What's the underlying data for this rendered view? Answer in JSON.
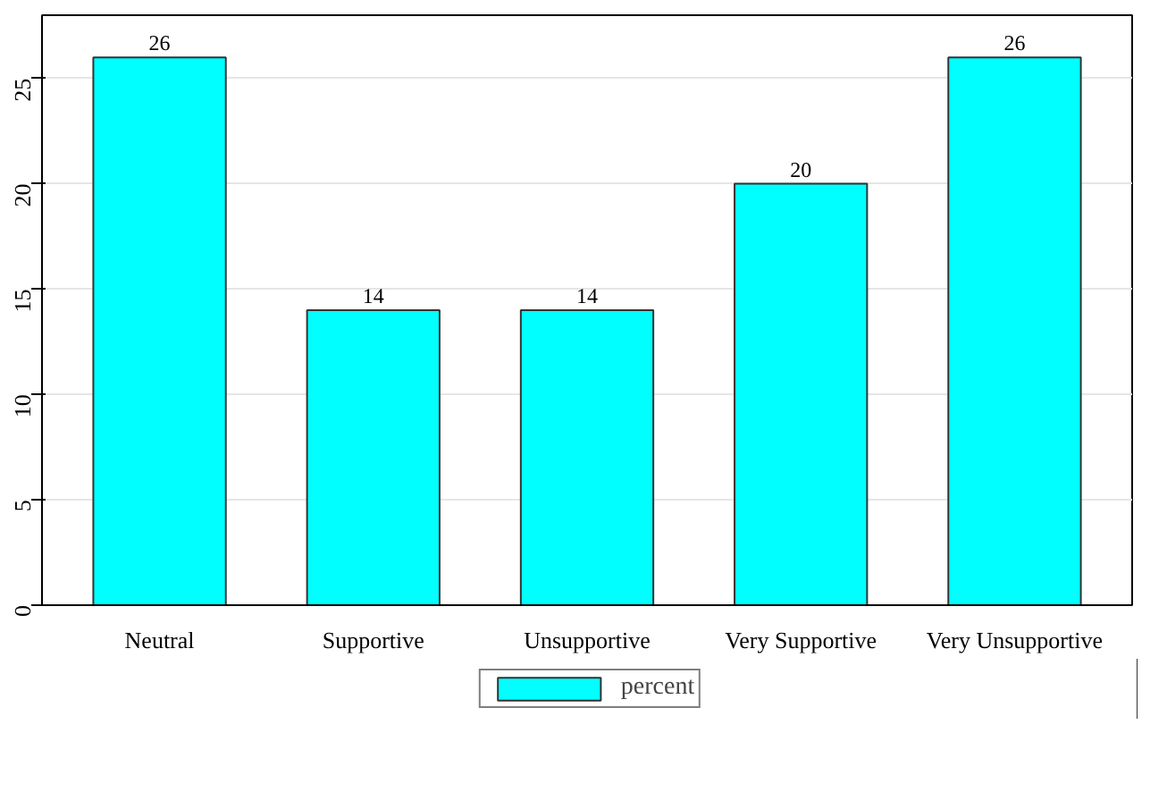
{
  "chart_data": {
    "type": "bar",
    "categories": [
      "Neutral",
      "Supportive",
      "Unsupportive",
      "Very Supportive",
      "Very Unsupportive"
    ],
    "series": [
      {
        "name": "percent",
        "color": "#00ffff",
        "values": [
          26,
          14,
          14,
          20,
          26
        ]
      }
    ],
    "ylim": [
      0,
      28
    ],
    "yticks": [
      0,
      5,
      10,
      15,
      20,
      25
    ],
    "grid": "y",
    "legend": "bottom",
    "data_labels": true
  }
}
